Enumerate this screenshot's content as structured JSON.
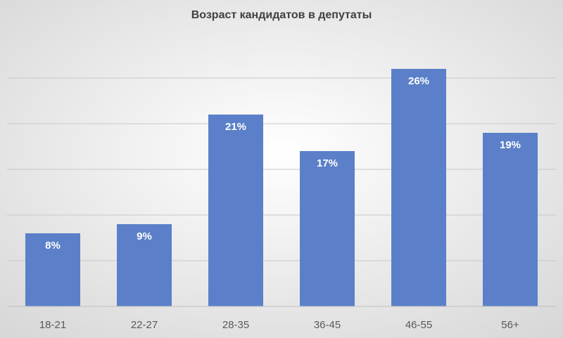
{
  "chart_data": {
    "type": "bar",
    "title": "Возраст кандидатов в депутаты",
    "categories": [
      "18-21",
      "22-27",
      "28-35",
      "36-45",
      "46-55",
      "56+"
    ],
    "values": [
      8,
      9,
      21,
      17,
      26,
      19
    ],
    "value_labels": [
      "8%",
      "9%",
      "21%",
      "17%",
      "26%",
      "19%"
    ],
    "color": "#5b80c9",
    "ylim": [
      0,
      30
    ],
    "yticks": [
      0,
      5,
      10,
      15,
      20,
      25
    ],
    "grid": true
  }
}
